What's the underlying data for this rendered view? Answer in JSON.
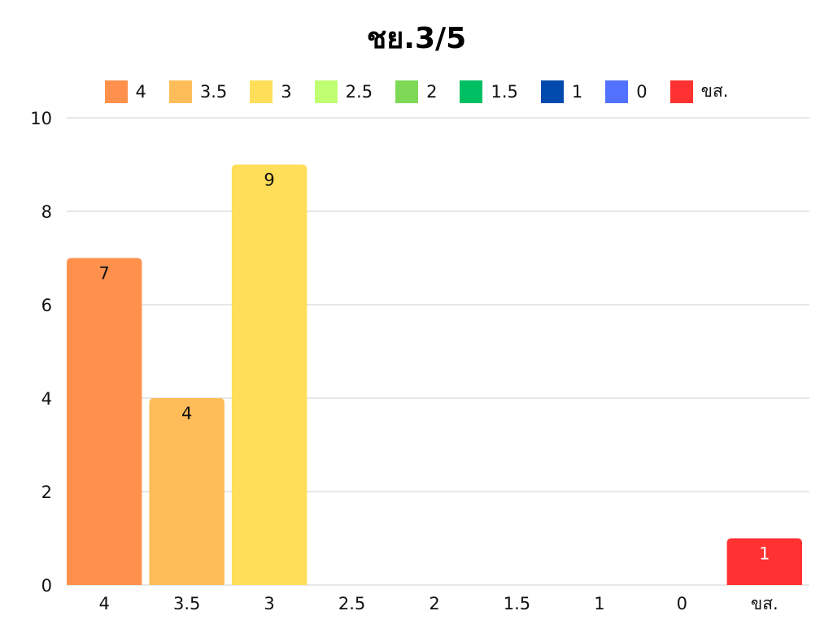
{
  "chart_data": {
    "type": "bar",
    "title": "ชย.3/5",
    "categories": [
      "4",
      "3.5",
      "3",
      "2.5",
      "2",
      "1.5",
      "1",
      "0",
      "ขส."
    ],
    "values": [
      7,
      4,
      9,
      0,
      0,
      0,
      0,
      0,
      1
    ],
    "colors": [
      "#ff914d",
      "#ffbd59",
      "#ffde59",
      "#c1ff72",
      "#7ed957",
      "#00bf63",
      "#004aad",
      "#5271ff",
      "#ff3131"
    ],
    "data_label_colors": [
      "#111111",
      "#111111",
      "#111111",
      "#111111",
      "#111111",
      "#111111",
      "#111111",
      "#111111",
      "#ffffff"
    ],
    "y_ticks": [
      "0",
      "2",
      "4",
      "6",
      "8",
      "10"
    ],
    "ylim": [
      0,
      10
    ],
    "xlabel": "",
    "ylabel": "",
    "grid": true,
    "legend_position": "top"
  }
}
